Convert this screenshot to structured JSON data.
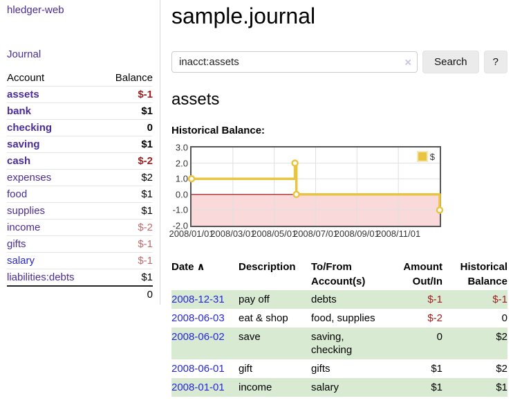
{
  "app": {
    "brand": "hledger-web",
    "nav_journal": "Journal"
  },
  "colors": {
    "link_purple": "#4a2b9b",
    "link_blue": "#2525dd",
    "negative_strong": "#a11c1c",
    "negative_dim": "#c06a6a",
    "row_stripe_green": "#d8ead2",
    "series_gold": "#e9c440"
  },
  "sidebar": {
    "col_account": "Account",
    "col_balance": "Balance",
    "rows": [
      {
        "account": "assets",
        "balance": "$-1",
        "depth": 1,
        "em": "bold",
        "tone": "neg"
      },
      {
        "account": "bank",
        "balance": "$1",
        "depth": 2,
        "em": "bold"
      },
      {
        "account": "checking",
        "balance": "0",
        "depth": 3,
        "em": "bold"
      },
      {
        "account": "saving",
        "balance": "$1",
        "depth": 3,
        "em": "bold"
      },
      {
        "account": "cash",
        "balance": "$-2",
        "depth": 2,
        "em": "bold",
        "tone": "neg"
      },
      {
        "account": "expenses",
        "balance": "$2",
        "depth": 1
      },
      {
        "account": "food",
        "balance": "$1",
        "depth": 2
      },
      {
        "account": "supplies",
        "balance": "$1",
        "depth": 2
      },
      {
        "account": "income",
        "balance": "$-2",
        "depth": 1,
        "tone": "dim"
      },
      {
        "account": "gifts",
        "balance": "$-1",
        "depth": 2,
        "tone": "dim"
      },
      {
        "account": "salary",
        "balance": "$-1",
        "depth": 2,
        "tone": "dim",
        "link": "new"
      },
      {
        "account": "liabilities:debts",
        "balance": "$1",
        "depth": 1
      }
    ],
    "total": "0"
  },
  "header": {
    "title": "sample.journal"
  },
  "search": {
    "value": "inacct:assets",
    "clear_icon": "×",
    "button_label": "Search",
    "help_label": "?"
  },
  "account_page": {
    "heading": "assets",
    "chart_label": "Historical Balance:"
  },
  "chart_data": {
    "type": "line",
    "step": true,
    "title": "Historical Balance",
    "xlabel": "",
    "ylabel": "",
    "grid": true,
    "legend_position": "top-right",
    "xlim": [
      0,
      12
    ],
    "ylim": [
      -2,
      3
    ],
    "series": [
      {
        "name": "$",
        "color": "#e9c440",
        "point_dates": [
          "2008-01-01",
          "2008-06-01",
          "2008-06-03",
          "2008-12-31"
        ],
        "points": [
          [
            0,
            1
          ],
          [
            5,
            2
          ],
          [
            5.07,
            0
          ],
          [
            12,
            -1
          ]
        ]
      }
    ],
    "yticks": [
      {
        "pos": 3,
        "label": "3.0"
      },
      {
        "pos": 2,
        "label": "2.0"
      },
      {
        "pos": 1,
        "label": "1.0"
      },
      {
        "pos": 0,
        "label": "0.0"
      },
      {
        "pos": -1,
        "label": "-1.0"
      },
      {
        "pos": -2,
        "label": "-2.0"
      }
    ],
    "xticks": [
      {
        "pos": 0,
        "label": "2008/01/01"
      },
      {
        "pos": 2,
        "label": "2008/03/01"
      },
      {
        "pos": 4,
        "label": "2008/05/01"
      },
      {
        "pos": 6,
        "label": "2008/07/01"
      },
      {
        "pos": 8,
        "label": "2008/09/01"
      },
      {
        "pos": 10,
        "label": "2008/11/01"
      }
    ],
    "zero_line_color": "#990000",
    "negative_fill": "#f9d9d9",
    "gridline_color": "#e0e0e0"
  },
  "register": {
    "sort_icon": "∧",
    "headers": {
      "date": "Date",
      "description": "Description",
      "accounts_l1": "To/From",
      "accounts_l2": "Account(s)",
      "amount_l1": "Amount",
      "amount_l2": "Out/In",
      "balance_l1": "Historical",
      "balance_l2": "Balance"
    },
    "rows": [
      {
        "date": "2008-12-31",
        "description": "pay off",
        "accounts": "debts",
        "amount": "$-1",
        "amount_tone": "neg",
        "balance": "$-1",
        "balance_tone": "neg"
      },
      {
        "date": "2008-06-03",
        "description": "eat & shop",
        "accounts": "food, supplies",
        "amount": "$-2",
        "amount_tone": "neg",
        "balance": "0"
      },
      {
        "date": "2008-06-02",
        "description": "save",
        "accounts": "saving,\nchecking",
        "amount": "0",
        "balance": "$2"
      },
      {
        "date": "2008-06-01",
        "description": "gift",
        "accounts": "gifts",
        "amount": "$1",
        "balance": "$2"
      },
      {
        "date": "2008-01-01",
        "description": "income",
        "accounts": "salary",
        "amount": "$1",
        "balance": "$1"
      }
    ]
  }
}
